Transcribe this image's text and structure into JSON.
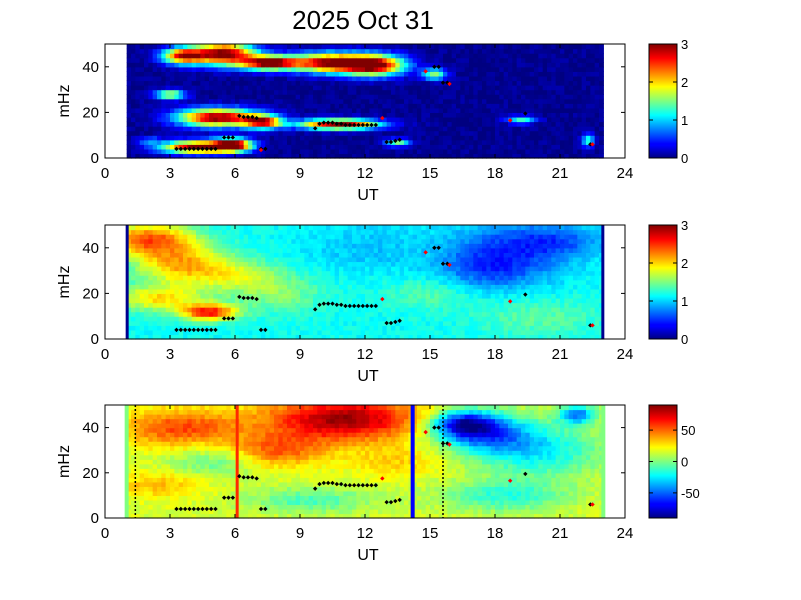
{
  "figure_title": "2025 Oct 31",
  "chart_data": [
    {
      "type": "heatmap",
      "xlabel": "UT",
      "ylabel": "mHz",
      "xlim": [
        0,
        24
      ],
      "ylim": [
        0,
        50
      ],
      "x_ticks": [
        "0",
        "3",
        "6",
        "9",
        "12",
        "15",
        "18",
        "21",
        "24"
      ],
      "y_ticks": [
        "0",
        "20",
        "40"
      ],
      "colorbar": {
        "min": 0,
        "max": 3,
        "ticks": [
          "0",
          "1",
          "2",
          "3"
        ]
      },
      "data_x_range": [
        1,
        23
      ],
      "background_value": 0.05,
      "blobs": [
        {
          "x": 5.5,
          "y": 46,
          "sx": 1.0,
          "sy": 3.5,
          "v": 3.0
        },
        {
          "x": 7.6,
          "y": 42,
          "sx": 0.9,
          "sy": 2.2,
          "v": 3.0
        },
        {
          "x": 3.6,
          "y": 45,
          "sx": 0.7,
          "sy": 2.5,
          "v": 2.5
        },
        {
          "x": 10.3,
          "y": 42,
          "sx": 1.2,
          "sy": 3.0,
          "v": 2.8
        },
        {
          "x": 12.4,
          "y": 41,
          "sx": 1.0,
          "sy": 3.2,
          "v": 3.0
        },
        {
          "x": 3.0,
          "y": 28,
          "sx": 0.5,
          "sy": 1.5,
          "v": 1.8
        },
        {
          "x": 5.2,
          "y": 18,
          "sx": 1.3,
          "sy": 2.8,
          "v": 3.0
        },
        {
          "x": 7.3,
          "y": 16,
          "sx": 0.6,
          "sy": 2.0,
          "v": 2.5
        },
        {
          "x": 4.3,
          "y": 5,
          "sx": 1.2,
          "sy": 2.0,
          "v": 3.0
        },
        {
          "x": 5.9,
          "y": 6,
          "sx": 0.6,
          "sy": 2.0,
          "v": 2.8
        },
        {
          "x": 10.8,
          "y": 15,
          "sx": 1.3,
          "sy": 1.6,
          "v": 3.0
        },
        {
          "x": 13.5,
          "y": 7,
          "sx": 0.4,
          "sy": 1.2,
          "v": 1.4
        },
        {
          "x": 15.2,
          "y": 37,
          "sx": 0.4,
          "sy": 1.8,
          "v": 1.5
        },
        {
          "x": 19.2,
          "y": 17,
          "sx": 0.5,
          "sy": 1.2,
          "v": 1.2
        },
        {
          "x": 22.3,
          "y": 8,
          "sx": 0.2,
          "sy": 2.0,
          "v": 1.3
        },
        {
          "x": 2.0,
          "y": 8,
          "sx": 0.4,
          "sy": 1.0,
          "v": 0.7
        }
      ],
      "black_points": [
        [
          3.3,
          4
        ],
        [
          3.5,
          4
        ],
        [
          3.7,
          4
        ],
        [
          3.9,
          4
        ],
        [
          4.1,
          4
        ],
        [
          4.3,
          4
        ],
        [
          4.5,
          4
        ],
        [
          4.7,
          4
        ],
        [
          4.9,
          4
        ],
        [
          5.1,
          4
        ],
        [
          5.5,
          9
        ],
        [
          5.7,
          9
        ],
        [
          5.9,
          9
        ],
        [
          6.2,
          18.5
        ],
        [
          6.4,
          18
        ],
        [
          6.6,
          18
        ],
        [
          6.8,
          18
        ],
        [
          7.0,
          17.5
        ],
        [
          7.2,
          4
        ],
        [
          7.4,
          4
        ],
        [
          9.7,
          13
        ],
        [
          9.9,
          15
        ],
        [
          10.1,
          15.5
        ],
        [
          10.3,
          15.5
        ],
        [
          10.5,
          15.5
        ],
        [
          10.7,
          15
        ],
        [
          10.9,
          15
        ],
        [
          11.1,
          14.5
        ],
        [
          11.3,
          14.5
        ],
        [
          11.5,
          14.5
        ],
        [
          11.7,
          14.5
        ],
        [
          11.9,
          14.5
        ],
        [
          12.1,
          14.5
        ],
        [
          12.3,
          14.5
        ],
        [
          12.5,
          14.5
        ],
        [
          13.0,
          7
        ],
        [
          13.2,
          7
        ],
        [
          13.4,
          7.5
        ],
        [
          13.6,
          8
        ],
        [
          15.2,
          40
        ],
        [
          15.4,
          40
        ],
        [
          15.6,
          33
        ],
        [
          15.8,
          33
        ],
        [
          19.4,
          19.5
        ],
        [
          22.4,
          6
        ]
      ],
      "red_points": [
        [
          12.8,
          17.5
        ],
        [
          14.8,
          38
        ],
        [
          15.9,
          32.5
        ],
        [
          18.7,
          16.5
        ],
        [
          22.5,
          6
        ],
        [
          7.2,
          3.5
        ]
      ]
    },
    {
      "type": "heatmap",
      "xlabel": "UT",
      "ylabel": "mHz",
      "xlim": [
        0,
        24
      ],
      "ylim": [
        0,
        50
      ],
      "x_ticks": [
        "0",
        "3",
        "6",
        "9",
        "12",
        "15",
        "18",
        "21",
        "24"
      ],
      "y_ticks": [
        "0",
        "20",
        "40"
      ],
      "colorbar": {
        "min": 0,
        "max": 3,
        "ticks": [
          "0",
          "1",
          "2",
          "3"
        ]
      },
      "data_x_range": [
        1,
        23
      ],
      "background_value": 1.15,
      "blobs": [
        {
          "x": 2.0,
          "y": 44,
          "sx": 1.5,
          "sy": 5.0,
          "v": 1.2
        },
        {
          "x": 3.5,
          "y": 33,
          "sx": 1.5,
          "sy": 6.0,
          "v": 0.9
        },
        {
          "x": 2.5,
          "y": 18,
          "sx": 1.5,
          "sy": 4.0,
          "v": 0.8
        },
        {
          "x": 4.8,
          "y": 12,
          "sx": 0.9,
          "sy": 2.5,
          "v": 1.4
        },
        {
          "x": 6.0,
          "y": 28,
          "sx": 1.5,
          "sy": 5.0,
          "v": 0.5
        },
        {
          "x": 8.0,
          "y": 20,
          "sx": 1.5,
          "sy": 6.0,
          "v": 0.35
        },
        {
          "x": 15.0,
          "y": 20,
          "sx": 1.5,
          "sy": 5.0,
          "v": 0.25
        },
        {
          "x": 18.5,
          "y": 38,
          "sx": 2.0,
          "sy": 10.0,
          "v": -0.55
        },
        {
          "x": 21.0,
          "y": 43,
          "sx": 1.5,
          "sy": 5.0,
          "v": -0.4
        },
        {
          "x": 17.5,
          "y": 30,
          "sx": 1.5,
          "sy": 6.0,
          "v": -0.3
        },
        {
          "x": 20.0,
          "y": 10,
          "sx": 2.0,
          "sy": 6.0,
          "v": 0.25
        },
        {
          "x": 12.0,
          "y": 40,
          "sx": 2.0,
          "sy": 8.0,
          "v": -0.2
        }
      ],
      "black_points": [
        [
          3.3,
          4
        ],
        [
          3.5,
          4
        ],
        [
          3.7,
          4
        ],
        [
          3.9,
          4
        ],
        [
          4.1,
          4
        ],
        [
          4.3,
          4
        ],
        [
          4.5,
          4
        ],
        [
          4.7,
          4
        ],
        [
          4.9,
          4
        ],
        [
          5.1,
          4
        ],
        [
          5.5,
          9
        ],
        [
          5.7,
          9
        ],
        [
          5.9,
          9
        ],
        [
          6.2,
          18.5
        ],
        [
          6.4,
          18
        ],
        [
          6.6,
          18
        ],
        [
          6.8,
          18
        ],
        [
          7.0,
          17.5
        ],
        [
          7.2,
          4
        ],
        [
          7.4,
          4
        ],
        [
          9.7,
          13
        ],
        [
          9.9,
          15
        ],
        [
          10.1,
          15.5
        ],
        [
          10.3,
          15.5
        ],
        [
          10.5,
          15.5
        ],
        [
          10.7,
          15
        ],
        [
          10.9,
          15
        ],
        [
          11.1,
          14.5
        ],
        [
          11.3,
          14.5
        ],
        [
          11.5,
          14.5
        ],
        [
          11.7,
          14.5
        ],
        [
          11.9,
          14.5
        ],
        [
          12.1,
          14.5
        ],
        [
          12.3,
          14.5
        ],
        [
          12.5,
          14.5
        ],
        [
          13.0,
          7
        ],
        [
          13.2,
          7
        ],
        [
          13.4,
          7.5
        ],
        [
          13.6,
          8
        ],
        [
          15.2,
          40
        ],
        [
          15.4,
          40
        ],
        [
          15.6,
          33
        ],
        [
          15.8,
          33
        ],
        [
          19.4,
          19.5
        ],
        [
          22.4,
          6
        ]
      ],
      "red_points": [
        [
          12.8,
          17.5
        ],
        [
          14.8,
          38
        ],
        [
          15.9,
          32.5
        ],
        [
          18.7,
          16.5
        ],
        [
          22.5,
          6
        ]
      ]
    },
    {
      "type": "heatmap",
      "xlabel": "UT",
      "ylabel": "mHz",
      "xlim": [
        0,
        24
      ],
      "ylim": [
        0,
        50
      ],
      "x_ticks": [
        "0",
        "3",
        "6",
        "9",
        "12",
        "15",
        "18",
        "21",
        "24"
      ],
      "y_ticks": [
        "0",
        "20",
        "40"
      ],
      "colorbar": {
        "min": -90,
        "max": 90,
        "ticks": [
          "50",
          "0",
          "-50"
        ],
        "tick_values": [
          50,
          0,
          -50
        ]
      },
      "data_x_range": [
        1,
        23
      ],
      "background_value": 15,
      "blobs": [
        {
          "x": 11.0,
          "y": 44,
          "sx": 2.5,
          "sy": 7.0,
          "v": 70
        },
        {
          "x": 3.5,
          "y": 40,
          "sx": 2.0,
          "sy": 6.0,
          "v": 40
        },
        {
          "x": 8.0,
          "y": 30,
          "sx": 1.5,
          "sy": 5.0,
          "v": 35
        },
        {
          "x": 2.5,
          "y": 15,
          "sx": 1.5,
          "sy": 4.0,
          "v": 20
        },
        {
          "x": 5.0,
          "y": 25,
          "sx": 1.5,
          "sy": 5.0,
          "v": -20
        },
        {
          "x": 9.5,
          "y": 8,
          "sx": 2.0,
          "sy": 4.0,
          "v": -25
        },
        {
          "x": 17.5,
          "y": 38,
          "sx": 1.5,
          "sy": 6.0,
          "v": -60
        },
        {
          "x": 20.0,
          "y": 30,
          "sx": 2.0,
          "sy": 8.0,
          "v": -40
        },
        {
          "x": 18.5,
          "y": 10,
          "sx": 2.0,
          "sy": 5.0,
          "v": -30
        },
        {
          "x": 13.5,
          "y": 25,
          "sx": 1.5,
          "sy": 5.0,
          "v": 15
        },
        {
          "x": 16.5,
          "y": 42,
          "sx": 1.0,
          "sy": 4.0,
          "v": -70
        },
        {
          "x": 21.8,
          "y": 46,
          "sx": 0.6,
          "sy": 3.0,
          "v": -60
        }
      ],
      "lines": [
        {
          "x": 6.1,
          "color": "#ff2a00",
          "width": 3
        },
        {
          "x": 14.2,
          "color": "#0000ff",
          "width": 4
        }
      ],
      "dotted_lines": [
        1.4,
        15.6
      ],
      "black_points": [
        [
          3.3,
          4
        ],
        [
          3.5,
          4
        ],
        [
          3.7,
          4
        ],
        [
          3.9,
          4
        ],
        [
          4.1,
          4
        ],
        [
          4.3,
          4
        ],
        [
          4.5,
          4
        ],
        [
          4.7,
          4
        ],
        [
          4.9,
          4
        ],
        [
          5.1,
          4
        ],
        [
          5.5,
          9
        ],
        [
          5.7,
          9
        ],
        [
          5.9,
          9
        ],
        [
          6.2,
          18.5
        ],
        [
          6.4,
          18
        ],
        [
          6.6,
          18
        ],
        [
          6.8,
          18
        ],
        [
          7.0,
          17.5
        ],
        [
          7.2,
          4
        ],
        [
          7.4,
          4
        ],
        [
          9.7,
          13
        ],
        [
          9.9,
          15
        ],
        [
          10.1,
          15.5
        ],
        [
          10.3,
          15.5
        ],
        [
          10.5,
          15.5
        ],
        [
          10.7,
          15
        ],
        [
          10.9,
          15
        ],
        [
          11.1,
          14.5
        ],
        [
          11.3,
          14.5
        ],
        [
          11.5,
          14.5
        ],
        [
          11.7,
          14.5
        ],
        [
          11.9,
          14.5
        ],
        [
          12.1,
          14.5
        ],
        [
          12.3,
          14.5
        ],
        [
          12.5,
          14.5
        ],
        [
          13.0,
          7
        ],
        [
          13.2,
          7
        ],
        [
          13.4,
          7.5
        ],
        [
          13.6,
          8
        ],
        [
          15.2,
          40
        ],
        [
          15.4,
          40
        ],
        [
          15.6,
          33
        ],
        [
          15.8,
          33
        ],
        [
          19.4,
          19.5
        ],
        [
          22.4,
          6
        ]
      ],
      "red_points": [
        [
          12.8,
          17.5
        ],
        [
          14.8,
          38
        ],
        [
          15.9,
          32.5
        ],
        [
          18.7,
          16.5
        ],
        [
          22.5,
          6
        ]
      ]
    }
  ]
}
